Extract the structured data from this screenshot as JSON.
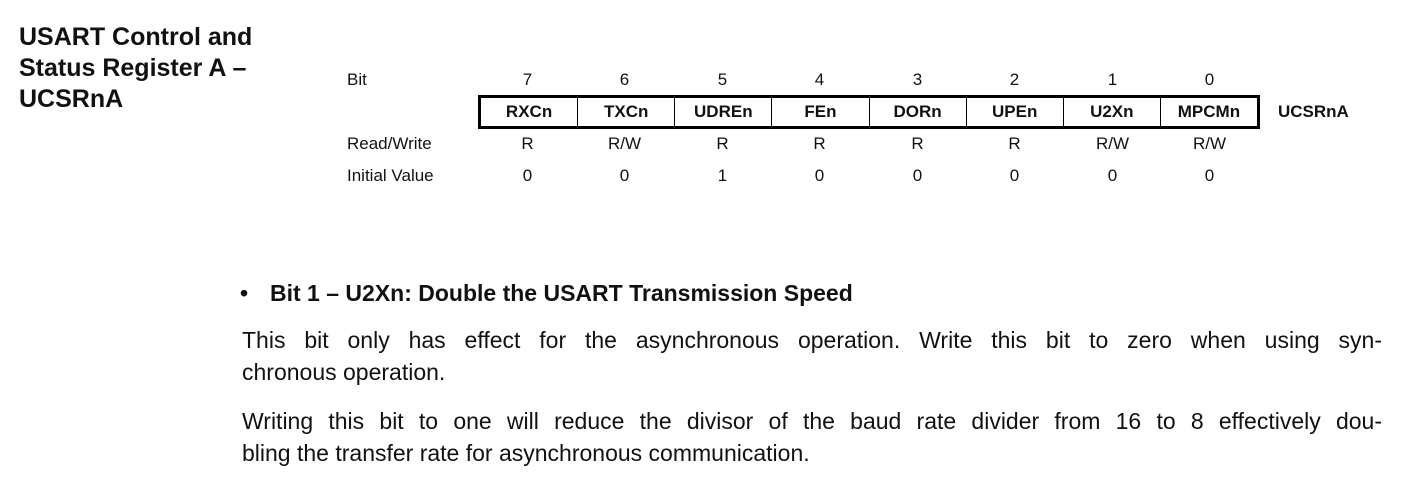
{
  "section_title": {
    "lines": [
      "USART Control and",
      "Status Register A –",
      "UCSRnA"
    ]
  },
  "register": {
    "name": "UCSRnA",
    "row_labels": {
      "bit": "Bit",
      "read_write": "Read/Write",
      "initial_value": "Initial Value"
    },
    "bits": [
      {
        "bit": "7",
        "field": "RXCn",
        "rw": "R",
        "init": "0"
      },
      {
        "bit": "6",
        "field": "TXCn",
        "rw": "R/W",
        "init": "0"
      },
      {
        "bit": "5",
        "field": "UDREn",
        "rw": "R",
        "init": "1"
      },
      {
        "bit": "4",
        "field": "FEn",
        "rw": "R",
        "init": "0"
      },
      {
        "bit": "3",
        "field": "DORn",
        "rw": "R",
        "init": "0"
      },
      {
        "bit": "2",
        "field": "UPEn",
        "rw": "R",
        "init": "0"
      },
      {
        "bit": "1",
        "field": "U2Xn",
        "rw": "R/W",
        "init": "0"
      },
      {
        "bit": "0",
        "field": "MPCMn",
        "rw": "R/W",
        "init": "0"
      }
    ]
  },
  "description": {
    "bullet": "•",
    "heading": "Bit 1 – U2Xn: Double the USART Transmission Speed",
    "paragraphs": [
      {
        "lines": [
          "This bit only has effect for the asynchronous operation. Write this bit to zero when using syn-",
          "chronous operation."
        ]
      },
      {
        "lines": [
          "Writing this bit to one will reduce the divisor of the baud rate divider from 16 to 8 effectively dou-",
          "bling the transfer rate for asynchronous communication."
        ]
      }
    ]
  }
}
